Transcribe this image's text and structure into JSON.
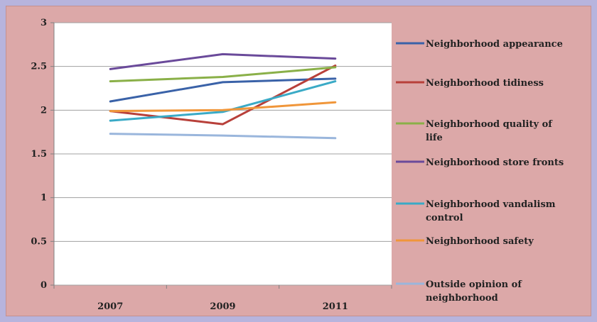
{
  "chart_data": {
    "type": "line",
    "categories": [
      "2007",
      "2009",
      "2011"
    ],
    "ylim": [
      0,
      3
    ],
    "yticks": [
      "0",
      "0.5",
      "1",
      "1.5",
      "2",
      "2.5",
      "3"
    ],
    "grid": true,
    "legend_position": "right",
    "series": [
      {
        "name": "Neighborhood appearance",
        "name_lines": [
          "Neighborhood appearance"
        ],
        "color": "#3a62a8",
        "values": [
          2.1,
          2.32,
          2.36
        ]
      },
      {
        "name": "Neighborhood tidiness",
        "name_lines": [
          "Neighborhood tidiness"
        ],
        "color": "#b8403a",
        "values": [
          1.99,
          1.84,
          2.51
        ]
      },
      {
        "name": "Neighborhood quality of life",
        "name_lines": [
          "Neighborhood quality of",
          "life"
        ],
        "color": "#8ab048",
        "values": [
          2.33,
          2.38,
          2.49
        ]
      },
      {
        "name": "Neighborhood store fronts",
        "name_lines": [
          "Neighborhood store fronts"
        ],
        "color": "#6a4a9a",
        "values": [
          2.47,
          2.64,
          2.59
        ]
      },
      {
        "name": "Neighborhood vandalism control",
        "name_lines": [
          "Neighborhood vandalism",
          "control"
        ],
        "color": "#3aaac6",
        "values": [
          1.88,
          1.98,
          2.33
        ]
      },
      {
        "name": "Neighborhood safety",
        "name_lines": [
          "Neighborhood safety"
        ],
        "color": "#f0963a",
        "values": [
          1.99,
          2.0,
          2.09
        ]
      },
      {
        "name": "Outside opinion of neighborhood",
        "name_lines": [
          "Outside opinion of",
          "neighborhood"
        ],
        "color": "#9ab6dc",
        "values": [
          1.73,
          1.71,
          1.68
        ]
      }
    ]
  }
}
